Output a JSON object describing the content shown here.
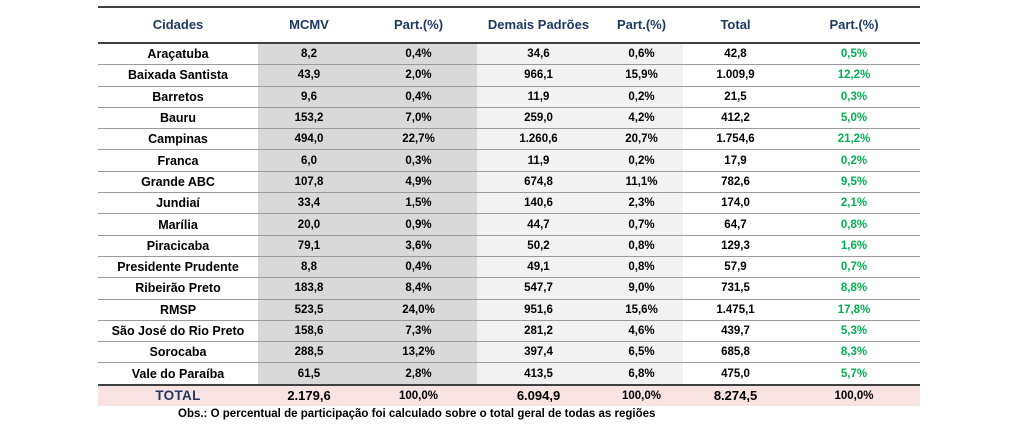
{
  "chart_data": {
    "type": "table",
    "columns": [
      "Cidades",
      "MCMV",
      "Part.(%)",
      "Demais Padrões",
      "Part.(%)",
      "Total",
      "Part.(%)"
    ],
    "rows": [
      [
        "Araçatuba",
        "8,2",
        "0,4%",
        "34,6",
        "0,6%",
        "42,8",
        "0,5%"
      ],
      [
        "Baixada Santista",
        "43,9",
        "2,0%",
        "966,1",
        "15,9%",
        "1.009,9",
        "12,2%"
      ],
      [
        "Barretos",
        "9,6",
        "0,4%",
        "11,9",
        "0,2%",
        "21,5",
        "0,3%"
      ],
      [
        "Bauru",
        "153,2",
        "7,0%",
        "259,0",
        "4,2%",
        "412,2",
        "5,0%"
      ],
      [
        "Campinas",
        "494,0",
        "22,7%",
        "1.260,6",
        "20,7%",
        "1.754,6",
        "21,2%"
      ],
      [
        "Franca",
        "6,0",
        "0,3%",
        "11,9",
        "0,2%",
        "17,9",
        "0,2%"
      ],
      [
        "Grande ABC",
        "107,8",
        "4,9%",
        "674,8",
        "11,1%",
        "782,6",
        "9,5%"
      ],
      [
        "Jundiaí",
        "33,4",
        "1,5%",
        "140,6",
        "2,3%",
        "174,0",
        "2,1%"
      ],
      [
        "Marília",
        "20,0",
        "0,9%",
        "44,7",
        "0,7%",
        "64,7",
        "0,8%"
      ],
      [
        "Piracicaba",
        "79,1",
        "3,6%",
        "50,2",
        "0,8%",
        "129,3",
        "1,6%"
      ],
      [
        "Presidente Prudente",
        "8,8",
        "0,4%",
        "49,1",
        "0,8%",
        "57,9",
        "0,7%"
      ],
      [
        "Ribeirão Preto",
        "183,8",
        "8,4%",
        "547,7",
        "9,0%",
        "731,5",
        "8,8%"
      ],
      [
        "RMSP",
        "523,5",
        "24,0%",
        "951,6",
        "15,6%",
        "1.475,1",
        "17,8%"
      ],
      [
        "São José do Rio Preto",
        "158,6",
        "7,3%",
        "281,2",
        "4,6%",
        "439,7",
        "5,3%"
      ],
      [
        "Sorocaba",
        "288,5",
        "13,2%",
        "397,4",
        "6,5%",
        "685,8",
        "8,3%"
      ],
      [
        "Vale do Paraíba",
        "61,5",
        "2,8%",
        "413,5",
        "6,8%",
        "475,0",
        "5,7%"
      ]
    ],
    "total_row": [
      "TOTAL",
      "2.179,6",
      "100,0%",
      "6.094,9",
      "100,0%",
      "8.274,5",
      "100,0%"
    ],
    "layout_hints": {
      "shaded_columns_dark": [
        "MCMV",
        "Part.(%) MCMV"
      ],
      "shaded_columns_light": [
        "Demais Padrões",
        "Part.(%) Demais"
      ],
      "green_column": "Part.(%) Total",
      "total_row_background": "pink"
    }
  },
  "note": "Obs.: O percentual de participação foi calculado sobre o total geral de todas as regiões",
  "colors": {
    "header_text": "#1F3864",
    "green_percent": "#00B050",
    "dark_gray_fill": "#D9D9D9",
    "light_gray_fill": "#F2F2F2",
    "total_row_fill": "#F8E2E2",
    "rule_dark": "#404040",
    "rule_light": "#9A9A9A"
  }
}
